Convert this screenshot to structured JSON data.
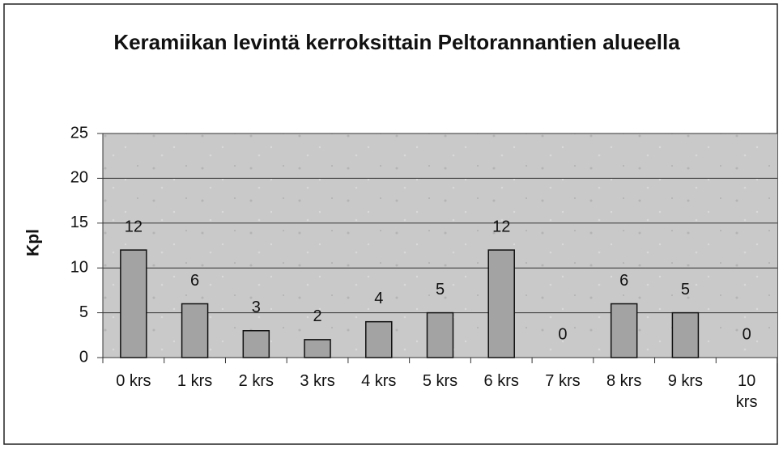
{
  "chart_data": {
    "type": "bar",
    "title": "Keramiikan levintä kerroksittain Peltorannantien alueella",
    "y_label": "Kpl",
    "categories": [
      "0 krs",
      "1 krs",
      "2 krs",
      "3 krs",
      "4 krs",
      "5 krs",
      "6 krs",
      "7 krs",
      "8 krs",
      "9 krs",
      "10 krs"
    ],
    "values": [
      12,
      6,
      3,
      2,
      4,
      5,
      12,
      0,
      6,
      5,
      0
    ],
    "color": "#a3a3a3",
    "ylim": [
      0,
      25
    ],
    "yticks": [
      0,
      5,
      10,
      15,
      20,
      25
    ],
    "grid": true
  }
}
